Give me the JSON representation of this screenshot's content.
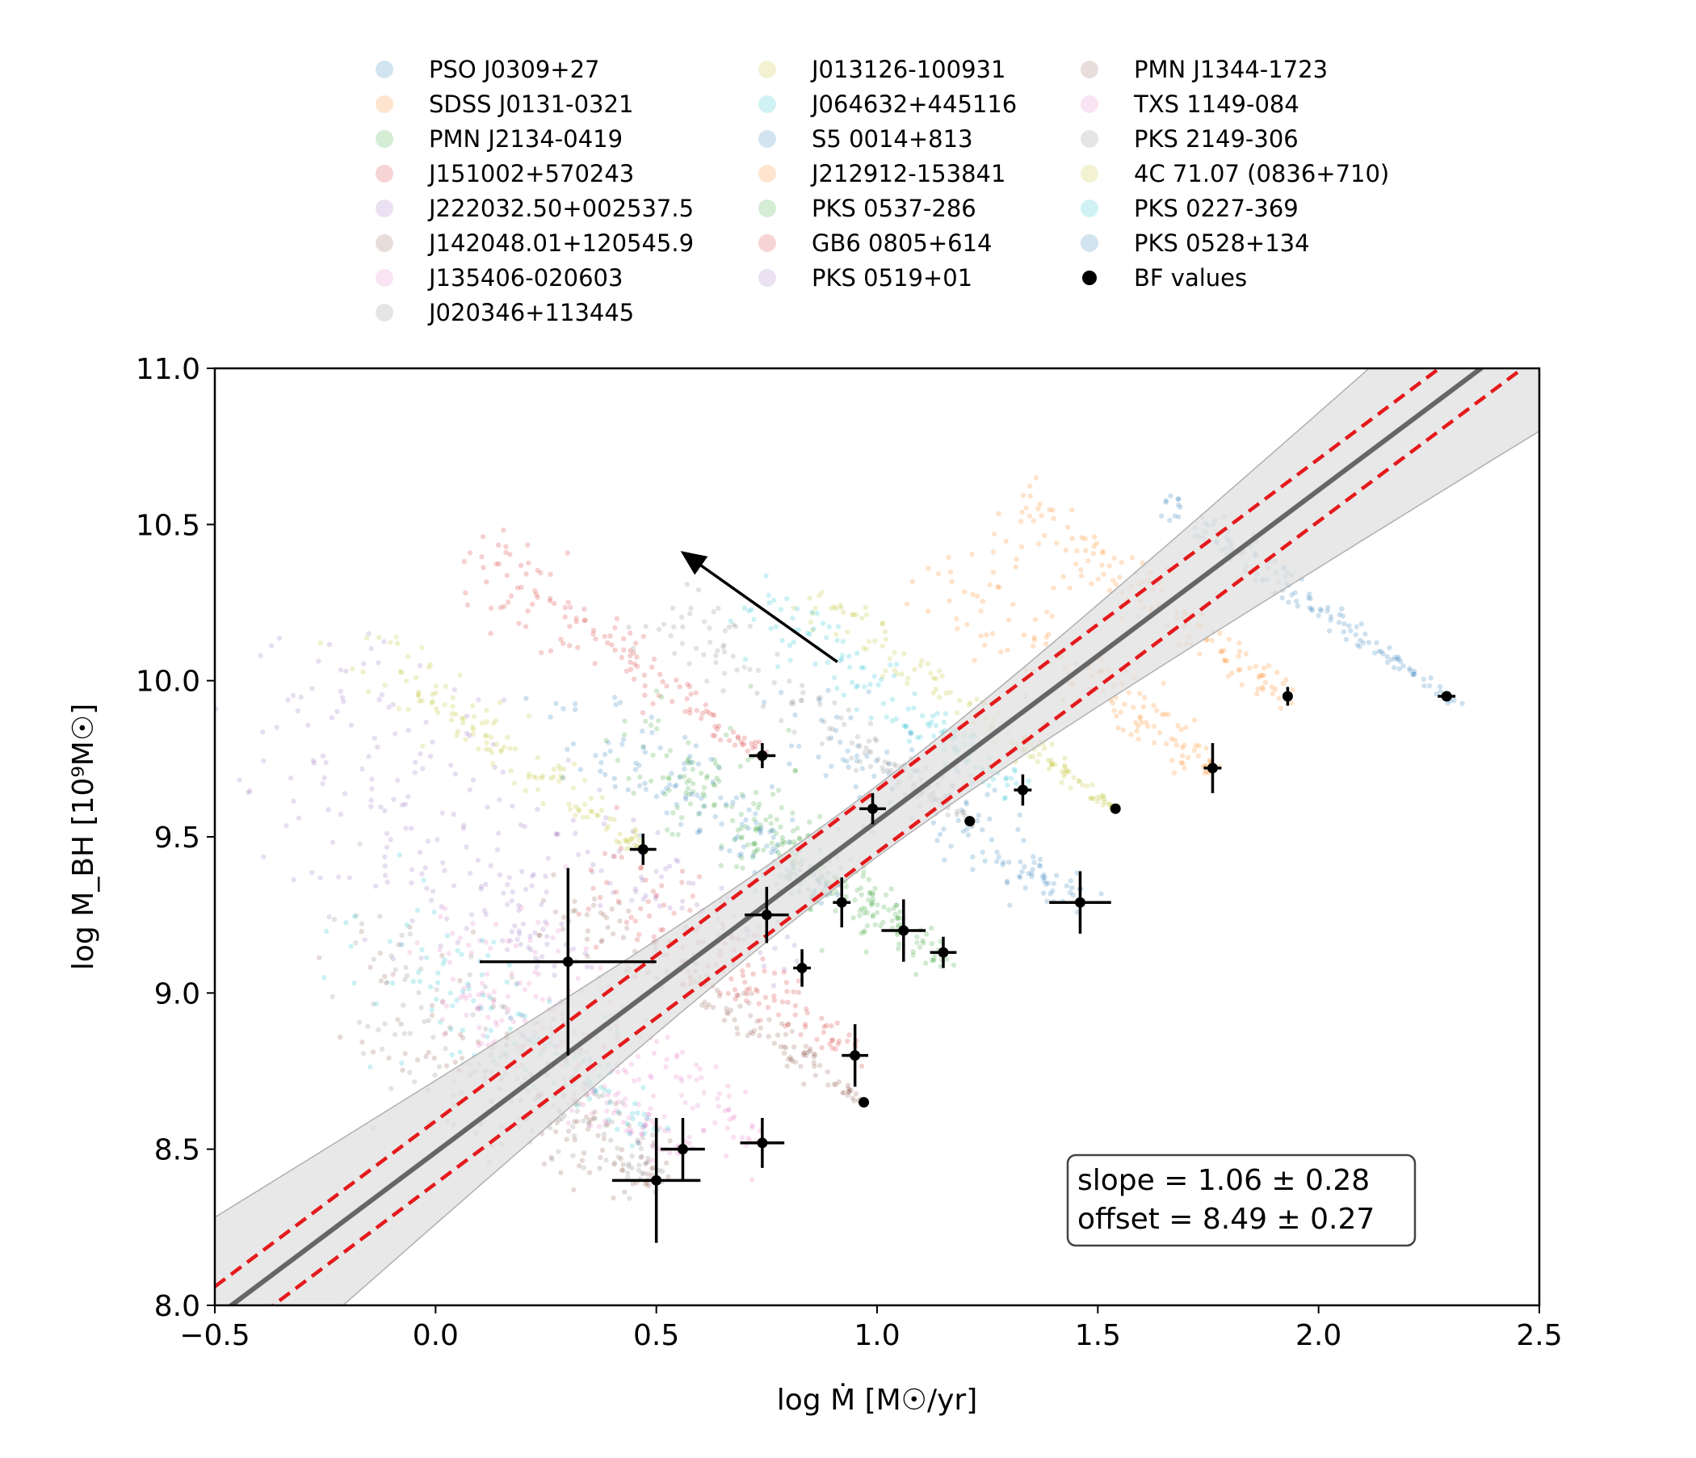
{
  "chart_data": {
    "type": "scatter",
    "xlabel": "log Ṁ [M☉/yr]",
    "ylabel": "log M_BH [10⁹M☉]",
    "xlim": [
      -0.5,
      2.5
    ],
    "ylim": [
      8.0,
      11.0
    ],
    "xticks": [
      "−0.5",
      "0.0",
      "0.5",
      "1.0",
      "1.5",
      "2.0",
      "2.5"
    ],
    "yticks": [
      "8.0",
      "8.5",
      "9.0",
      "9.5",
      "10.0",
      "10.5",
      "11.0"
    ],
    "xtick_values": [
      -0.5,
      0.0,
      0.5,
      1.0,
      1.5,
      2.0,
      2.5
    ],
    "ytick_values": [
      8.0,
      8.5,
      9.0,
      9.5,
      10.0,
      10.5,
      11.0
    ],
    "grid": false,
    "legend_position": "top",
    "legend": [
      {
        "label": "PSO J0309+27",
        "color": "#1f77b4"
      },
      {
        "label": "SDSS J0131-0321",
        "color": "#ff7f0e"
      },
      {
        "label": "PMN J2134-0419",
        "color": "#2ca02c"
      },
      {
        "label": "J151002+570243",
        "color": "#d62728"
      },
      {
        "label": "J222032.50+002537.5",
        "color": "#9467bd"
      },
      {
        "label": "J142048.01+120545.9",
        "color": "#8c564b"
      },
      {
        "label": "J135406-020603",
        "color": "#e377c2"
      },
      {
        "label": "J020346+113445",
        "color": "#7f7f7f"
      },
      {
        "label": "J013126-100931",
        "color": "#bcbd22"
      },
      {
        "label": "J064632+445116",
        "color": "#17becf"
      },
      {
        "label": "S5 0014+813",
        "color": "#1f77b4"
      },
      {
        "label": "J212912-153841",
        "color": "#ff7f0e"
      },
      {
        "label": "PKS 0537-286",
        "color": "#2ca02c"
      },
      {
        "label": "GB6 0805+614",
        "color": "#d62728"
      },
      {
        "label": "PKS 0519+01",
        "color": "#9467bd"
      },
      {
        "label": "PMN J1344-1723",
        "color": "#8c564b"
      },
      {
        "label": "TXS 1149-084",
        "color": "#e377c2"
      },
      {
        "label": "PKS 2149-306",
        "color": "#7f7f7f"
      },
      {
        "label": "4C 71.07 (0836+710)",
        "color": "#bcbd22"
      },
      {
        "label": "PKS 0227-369",
        "color": "#17becf"
      },
      {
        "label": "PKS 0528+134",
        "color": "#1f77b4"
      },
      {
        "label": "BF values",
        "color": "#000000"
      }
    ],
    "fit": {
      "slope": 1.06,
      "slope_err": 0.28,
      "offset": 8.49,
      "offset_err": 0.27,
      "scatter_band": 0.1,
      "line_color": "#666666",
      "band_color": "#e0e0e0",
      "scatter_color": "#e41a1c"
    },
    "annotation_lines": [
      "slope = 1.06 ± 0.28",
      "offset = 8.49 ± 0.27"
    ],
    "arrow": {
      "from": [
        0.91,
        10.06
      ],
      "to": [
        0.56,
        10.41
      ]
    },
    "bf_values": [
      {
        "x": 2.29,
        "y": 9.95,
        "xerr": 0.02,
        "yerr": 0.01
      },
      {
        "x": 1.93,
        "y": 9.95,
        "xerr": 0.0,
        "yerr": 0.03
      },
      {
        "x": 1.76,
        "y": 9.72,
        "xerr": 0.02,
        "yerr": 0.08
      },
      {
        "x": 1.54,
        "y": 9.59,
        "xerr": 0.0,
        "yerr": 0.0
      },
      {
        "x": 1.33,
        "y": 9.65,
        "xerr": 0.02,
        "yerr": 0.05
      },
      {
        "x": 1.21,
        "y": 9.55,
        "xerr": 0.0,
        "yerr": 0.0
      },
      {
        "x": 0.99,
        "y": 9.59,
        "xerr": 0.03,
        "yerr": 0.05
      },
      {
        "x": 0.74,
        "y": 9.76,
        "xerr": 0.03,
        "yerr": 0.04
      },
      {
        "x": 0.47,
        "y": 9.46,
        "xerr": 0.03,
        "yerr": 0.05
      },
      {
        "x": 0.75,
        "y": 9.25,
        "xerr": 0.05,
        "yerr": 0.09
      },
      {
        "x": 0.92,
        "y": 9.29,
        "xerr": 0.02,
        "yerr": 0.08
      },
      {
        "x": 1.06,
        "y": 9.2,
        "xerr": 0.05,
        "yerr": 0.1
      },
      {
        "x": 1.15,
        "y": 9.13,
        "xerr": 0.03,
        "yerr": 0.05
      },
      {
        "x": 1.46,
        "y": 9.29,
        "xerr": 0.07,
        "yerr": 0.1
      },
      {
        "x": 0.83,
        "y": 9.08,
        "xerr": 0.02,
        "yerr": 0.06
      },
      {
        "x": 0.3,
        "y": 9.1,
        "xerr": 0.2,
        "yerr": 0.3
      },
      {
        "x": 0.95,
        "y": 8.8,
        "xerr": 0.03,
        "yerr": 0.1
      },
      {
        "x": 0.97,
        "y": 8.65,
        "xerr": 0.0,
        "yerr": 0.0
      },
      {
        "x": 0.74,
        "y": 8.52,
        "xerr": 0.05,
        "yerr": 0.08
      },
      {
        "x": 0.56,
        "y": 8.5,
        "xerr": 0.05,
        "yerr": 0.1
      },
      {
        "x": 0.5,
        "y": 8.4,
        "xerr": 0.1,
        "yerr": 0.2
      }
    ],
    "posterior_clouds": [
      {
        "source": "PSO J0309+27",
        "color": "#1f77b4",
        "start": [
          2.31,
          9.93
        ],
        "end": [
          1.67,
          10.56
        ],
        "spread_x": 0.02,
        "spread_y": 0.02
      },
      {
        "source": "SDSS J0131-0321",
        "color": "#ff7f0e",
        "start": [
          1.93,
          9.95
        ],
        "end": [
          1.32,
          10.56
        ],
        "spread_x": 0.03,
        "spread_y": 0.04
      },
      {
        "source": "PMN J2134-0419",
        "color": "#2ca02c",
        "start": [
          1.15,
          9.1
        ],
        "end": [
          0.55,
          9.72
        ],
        "spread_x": 0.05,
        "spread_y": 0.08
      },
      {
        "source": "J151002+570243",
        "color": "#d62728",
        "start": [
          0.74,
          9.76
        ],
        "end": [
          0.1,
          10.4
        ],
        "spread_x": 0.03,
        "spread_y": 0.05
      },
      {
        "source": "J222032.50+002537.5",
        "color": "#9467bd",
        "start": [
          0.83,
          9.08
        ],
        "end": [
          -0.3,
          10.0
        ],
        "spread_x": 0.06,
        "spread_y": 0.1
      },
      {
        "source": "J142048.01+120545.9",
        "color": "#8c564b",
        "start": [
          0.97,
          8.65
        ],
        "end": [
          0.3,
          9.3
        ],
        "spread_x": 0.03,
        "spread_y": 0.04
      },
      {
        "source": "J135406-020603",
        "color": "#e377c2",
        "start": [
          0.74,
          8.52
        ],
        "end": [
          0.1,
          9.15
        ],
        "spread_x": 0.05,
        "spread_y": 0.08
      },
      {
        "source": "J020346+113445",
        "color": "#7f7f7f",
        "start": [
          0.5,
          8.4
        ],
        "end": [
          -0.2,
          9.1
        ],
        "spread_x": 0.06,
        "spread_y": 0.1
      },
      {
        "source": "J013126-100931",
        "color": "#bcbd22",
        "start": [
          1.54,
          9.59
        ],
        "end": [
          0.85,
          10.26
        ],
        "spread_x": 0.02,
        "spread_y": 0.03
      },
      {
        "source": "J064632+445116",
        "color": "#17becf",
        "start": [
          1.33,
          9.65
        ],
        "end": [
          0.7,
          10.27
        ],
        "spread_x": 0.03,
        "spread_y": 0.05
      },
      {
        "source": "S5 0014+813",
        "color": "#1f77b4",
        "start": [
          1.46,
          9.29
        ],
        "end": [
          0.85,
          9.9
        ],
        "spread_x": 0.06,
        "spread_y": 0.08
      },
      {
        "source": "J212912-153841",
        "color": "#ff7f0e",
        "start": [
          1.76,
          9.72
        ],
        "end": [
          1.15,
          10.33
        ],
        "spread_x": 0.04,
        "spread_y": 0.06
      },
      {
        "source": "PKS 0537-286",
        "color": "#2ca02c",
        "start": [
          1.06,
          9.2
        ],
        "end": [
          0.45,
          9.81
        ],
        "spread_x": 0.04,
        "spread_y": 0.06
      },
      {
        "source": "GB6 0805+614",
        "color": "#d62728",
        "start": [
          0.95,
          8.8
        ],
        "end": [
          0.35,
          9.4
        ],
        "spread_x": 0.04,
        "spread_y": 0.07
      },
      {
        "source": "PKS 0519+01",
        "color": "#9467bd",
        "start": [
          0.3,
          9.1
        ],
        "end": [
          -0.4,
          9.8
        ],
        "spread_x": 0.1,
        "spread_y": 0.15
      },
      {
        "source": "PMN J1344-1723",
        "color": "#8c564b",
        "start": [
          0.5,
          8.4
        ],
        "end": [
          -0.1,
          9.0
        ],
        "spread_x": 0.08,
        "spread_y": 0.1
      },
      {
        "source": "TXS 1149-084",
        "color": "#e377c2",
        "start": [
          0.56,
          8.5
        ],
        "end": [
          -0.05,
          9.1
        ],
        "spread_x": 0.06,
        "spread_y": 0.08
      },
      {
        "source": "PKS 2149-306",
        "color": "#7f7f7f",
        "start": [
          1.21,
          9.55
        ],
        "end": [
          0.55,
          10.2
        ],
        "spread_x": 0.03,
        "spread_y": 0.04
      },
      {
        "source": "4C 71.07 (0836+710)",
        "color": "#bcbd22",
        "start": [
          0.47,
          9.46
        ],
        "end": [
          -0.15,
          10.08
        ],
        "spread_x": 0.03,
        "spread_y": 0.04
      },
      {
        "source": "PKS 0227-369",
        "color": "#17becf",
        "start": [
          0.5,
          8.55
        ],
        "end": [
          -0.1,
          9.15
        ],
        "spread_x": 0.06,
        "spread_y": 0.08
      },
      {
        "source": "PKS 0528+134",
        "color": "#1f77b4",
        "start": [
          0.92,
          9.29
        ],
        "end": [
          0.3,
          9.9
        ],
        "spread_x": 0.04,
        "spread_y": 0.06
      }
    ]
  }
}
